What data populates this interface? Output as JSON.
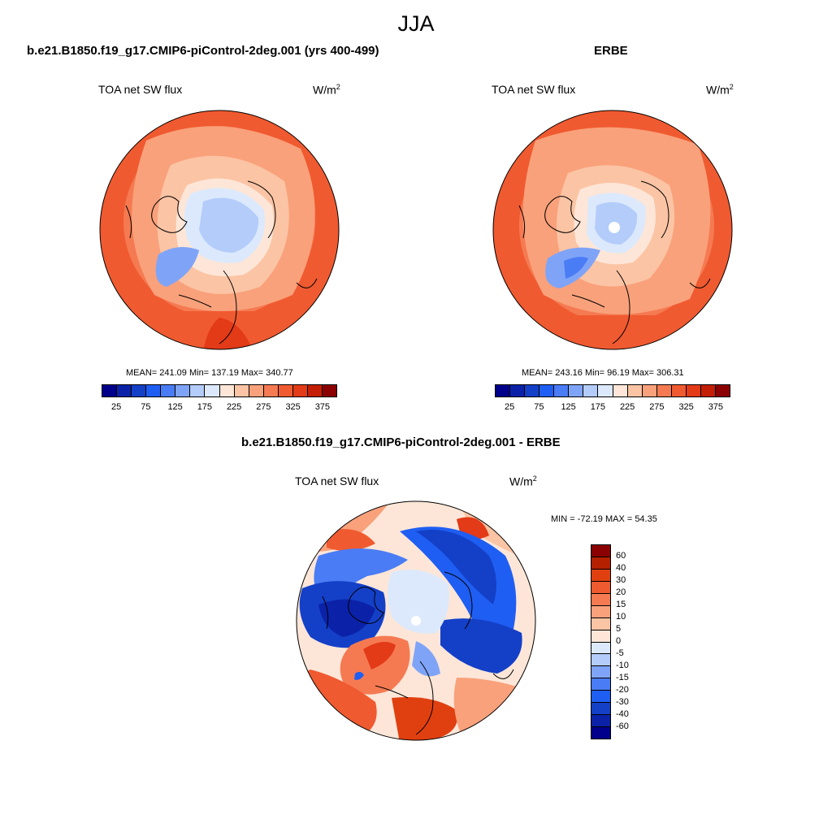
{
  "main_title": "JJA",
  "panels": [
    {
      "case": "b.e21.B1850.f19_g17.CMIP6-piControl-2deg.001 (yrs 400-499)",
      "variable": "TOA net SW flux",
      "units": "W/m",
      "units_sup": "2",
      "stats": "MEAN= 241.09  Min= 137.19  Max= 340.77"
    },
    {
      "case": "ERBE",
      "variable": "TOA net SW flux",
      "units": "W/m",
      "units_sup": "2",
      "stats": "MEAN= 243.16  Min=  96.19  Max= 306.31"
    },
    {
      "case": "b.e21.B1850.f19_g17.CMIP6-piControl-2deg.001 - ERBE",
      "variable": "TOA net SW flux",
      "units": "W/m",
      "units_sup": "2",
      "stats": "MIN = -72.19 MAX =  54.35"
    }
  ],
  "colorbar_abs": {
    "colors": [
      "#00008b",
      "#0b22a8",
      "#1440c8",
      "#1f5ef2",
      "#4a7cf5",
      "#7fa4f7",
      "#b3ccfa",
      "#dce9fc",
      "#fde6d8",
      "#fbc4a4",
      "#f9a17b",
      "#f57a52",
      "#f05a30",
      "#e33a17",
      "#c41e06",
      "#8b0000"
    ],
    "ticks": [
      "25",
      "75",
      "125",
      "175",
      "225",
      "275",
      "325",
      "375"
    ]
  },
  "colorbar_diff": {
    "colors": [
      "#8b0000",
      "#b42000",
      "#e04010",
      "#f05a30",
      "#f57a52",
      "#f9a17b",
      "#fbc4a4",
      "#fde6d8",
      "#dce9fc",
      "#b3ccfa",
      "#7fa4f7",
      "#4a7cf5",
      "#1f5ef2",
      "#1440c8",
      "#0b22a8",
      "#00008b"
    ],
    "ticks": [
      "60",
      "40",
      "30",
      "20",
      "15",
      "10",
      "5",
      "0",
      "-5",
      "-10",
      "-15",
      "-20",
      "-30",
      "-40",
      "-60"
    ]
  }
}
